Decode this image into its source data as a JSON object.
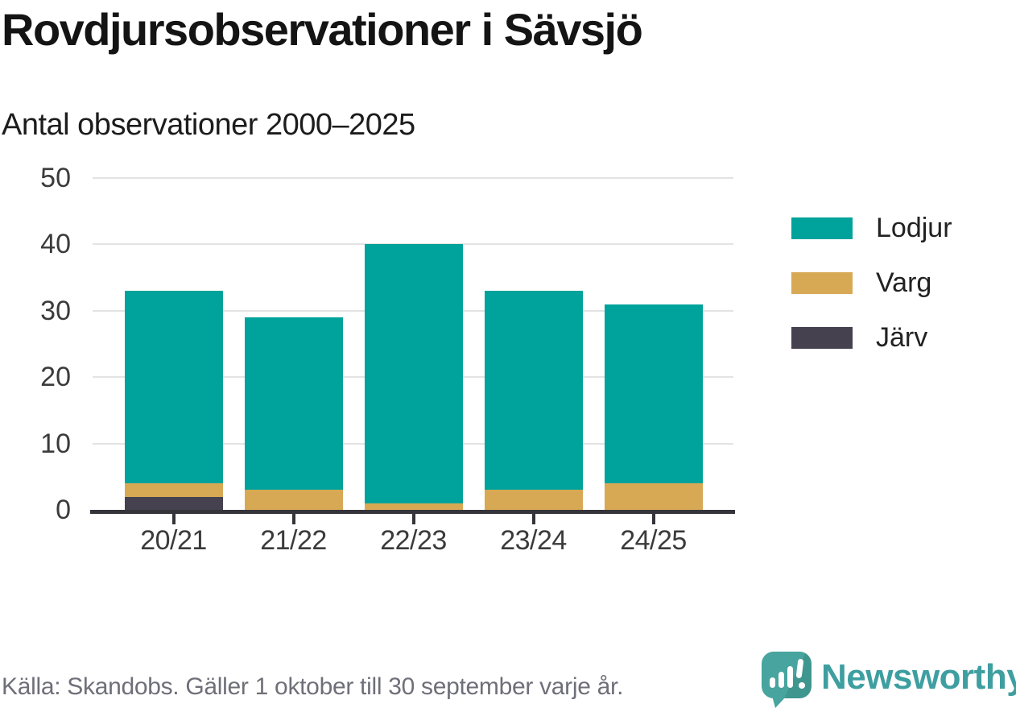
{
  "header": {
    "title": "Rovdjursobservationer i Sävsjö",
    "subtitle": "Antal observationer 2000–2025"
  },
  "chart_data": {
    "type": "bar",
    "stacked": true,
    "title": "Rovdjursobservationer i Sävsjö",
    "subtitle": "Antal observationer 2000–2025",
    "categories": [
      "20/21",
      "21/22",
      "22/23",
      "23/24",
      "24/25"
    ],
    "series": [
      {
        "name": "Lodjur",
        "color": "#00A39B",
        "values": [
          29,
          26,
          39,
          30,
          27
        ]
      },
      {
        "name": "Varg",
        "color": "#D8A955",
        "values": [
          2,
          3,
          1,
          3,
          4
        ]
      },
      {
        "name": "Järv",
        "color": "#45414E",
        "values": [
          2,
          0,
          0,
          0,
          0
        ]
      }
    ],
    "stack_order_bottom_to_top": [
      "Järv",
      "Varg",
      "Lodjur"
    ],
    "totals": [
      33,
      29,
      40,
      33,
      31
    ],
    "xlabel": "",
    "ylabel": "",
    "ylim": [
      0,
      50
    ],
    "yticks": [
      0,
      10,
      20,
      30,
      40,
      50
    ],
    "grid": true,
    "legend_position": "right",
    "colors": {
      "gridline": "#e3e3e3",
      "axis": "#35343a",
      "tick_label": "#3b3b3b"
    }
  },
  "footer": {
    "source": "Källa: Skandobs. Gäller 1 oktober till 30 september varje år.",
    "brand": "Newsworthy"
  }
}
